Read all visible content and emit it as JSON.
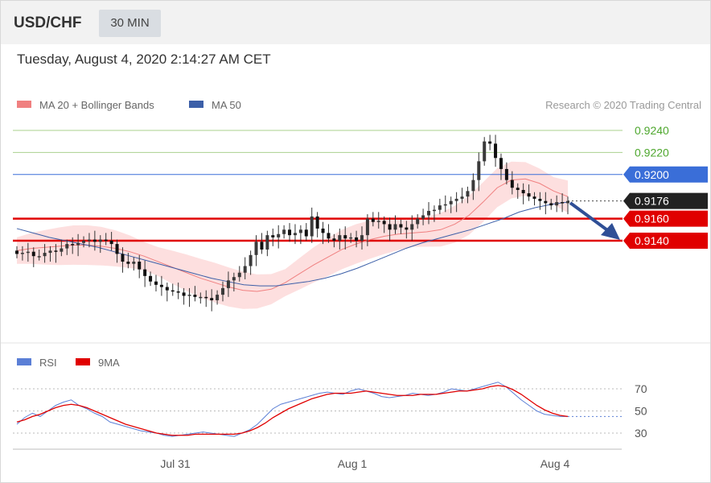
{
  "header": {
    "symbol": "USD/CHF",
    "timeframe": "30 MIN"
  },
  "datetime": "Tuesday, August 4, 2020 2:14:27 AM CET",
  "legend": {
    "ma20": "MA 20 + Bollinger Bands",
    "ma50": "MA 50",
    "credit": "Research © 2020 Trading Central",
    "rsi": "RSI",
    "rsi_ma": "9MA"
  },
  "colors": {
    "ma20": "#f08080",
    "ma50": "#3c5fa8",
    "band_fill": "#fddcdc",
    "candle": "#333333",
    "green_line": "#a9d18e",
    "green_text": "#4ea72e",
    "blue_level": "#3a6ed8",
    "red_level": "#e00000",
    "current": "#222222",
    "arrow": "#2f4f96",
    "rsi": "#5b7fd6",
    "rsi_ma": "#e00000"
  },
  "chart_data": [
    {
      "type": "candlestick",
      "title": "USD/CHF 30 MIN",
      "x_axis": [
        "Jul 31",
        "Aug 1",
        "Aug 4"
      ],
      "ylim": [
        0.9085,
        0.9245
      ],
      "levels": [
        {
          "value": 0.924,
          "label": "0.9240",
          "kind": "resistance-minor"
        },
        {
          "value": 0.922,
          "label": "0.9220",
          "kind": "resistance-minor"
        },
        {
          "value": 0.92,
          "label": "0.9200",
          "kind": "resistance"
        },
        {
          "value": 0.9176,
          "label": "0.9176",
          "kind": "current"
        },
        {
          "value": 0.916,
          "label": "0.9160",
          "kind": "support"
        },
        {
          "value": 0.914,
          "label": "0.9140",
          "kind": "support"
        }
      ],
      "closes": [
        0.9128,
        0.9129,
        0.913,
        0.9126,
        0.9126,
        0.9129,
        0.9131,
        0.913,
        0.9133,
        0.9137,
        0.9136,
        0.9138,
        0.914,
        0.9141,
        0.9139,
        0.9141,
        0.914,
        0.9137,
        0.9128,
        0.9121,
        0.9119,
        0.9121,
        0.9114,
        0.9108,
        0.9103,
        0.91,
        0.9098,
        0.9095,
        0.9094,
        0.9093,
        0.909,
        0.9091,
        0.9089,
        0.9089,
        0.9088,
        0.9086,
        0.9091,
        0.9097,
        0.9104,
        0.9107,
        0.9111,
        0.9117,
        0.9127,
        0.9139,
        0.9132,
        0.9145,
        0.9143,
        0.9146,
        0.915,
        0.9145,
        0.9147,
        0.915,
        0.9144,
        0.9162,
        0.9151,
        0.9147,
        0.9142,
        0.914,
        0.9145,
        0.9142,
        0.9143,
        0.914,
        0.9145,
        0.916,
        0.9157,
        0.9158,
        0.9155,
        0.915,
        0.9155,
        0.9152,
        0.915,
        0.9155,
        0.916,
        0.9163,
        0.9167,
        0.9168,
        0.9172,
        0.9173,
        0.9176,
        0.9178,
        0.918,
        0.9185,
        0.9195,
        0.9212,
        0.923,
        0.9228,
        0.9215,
        0.9205,
        0.9195,
        0.9188,
        0.9186,
        0.9183,
        0.918,
        0.9178,
        0.9176,
        0.9174,
        0.9172,
        0.9175,
        0.9174,
        0.9176
      ],
      "ma20": [
        0.9131,
        0.9133,
        0.9134,
        0.9135,
        0.9136,
        0.9136,
        0.9135,
        0.9133,
        0.913,
        0.9126,
        0.9121,
        0.9116,
        0.9111,
        0.9106,
        0.9102,
        0.9098,
        0.9095,
        0.9094,
        0.9096,
        0.9102,
        0.911,
        0.9118,
        0.9125,
        0.9132,
        0.9137,
        0.9141,
        0.9144,
        0.9146,
        0.9147,
        0.9148,
        0.915,
        0.9155,
        0.9163,
        0.9175,
        0.9188,
        0.9195,
        0.9196,
        0.9192,
        0.9185,
        0.918
      ],
      "ma50": [
        0.9151,
        0.9147,
        0.9143,
        0.914,
        0.9137,
        0.9134,
        0.913,
        0.9126,
        0.9122,
        0.9118,
        0.9114,
        0.911,
        0.9106,
        0.9103,
        0.91,
        0.9099,
        0.9099,
        0.9101,
        0.9103,
        0.9106,
        0.911,
        0.9115,
        0.9121,
        0.9127,
        0.9133,
        0.9138,
        0.9142,
        0.9146,
        0.915,
        0.9155,
        0.916,
        0.9166,
        0.917,
        0.9173,
        0.9175
      ]
    },
    {
      "type": "line",
      "title": "RSI",
      "yticks": [
        30,
        50,
        70
      ],
      "series": [
        {
          "name": "RSI",
          "values": [
            38,
            44,
            48,
            45,
            50,
            55,
            58,
            60,
            55,
            52,
            48,
            45,
            40,
            38,
            36,
            34,
            32,
            31,
            30,
            28,
            27,
            28,
            29,
            30,
            31,
            30,
            29,
            28,
            27,
            30,
            33,
            38,
            45,
            52,
            56,
            58,
            60,
            62,
            64,
            66,
            67,
            66,
            65,
            68,
            70,
            68,
            66,
            63,
            62,
            63,
            64,
            66,
            65,
            64,
            65,
            67,
            70,
            69,
            68,
            70,
            72,
            74,
            76,
            72,
            66,
            60,
            55,
            50,
            47,
            46,
            45,
            45
          ]
        },
        {
          "name": "9MA",
          "values": [
            40,
            42,
            45,
            47,
            50,
            53,
            55,
            56,
            55,
            53,
            50,
            47,
            44,
            41,
            38,
            36,
            34,
            32,
            30,
            29,
            28,
            28,
            28,
            29,
            29,
            29,
            29,
            29,
            29,
            30,
            32,
            35,
            39,
            44,
            48,
            52,
            55,
            58,
            61,
            63,
            65,
            66,
            66,
            66,
            67,
            68,
            67,
            66,
            65,
            64,
            64,
            64,
            65,
            65,
            65,
            66,
            67,
            68,
            68,
            69,
            70,
            72,
            73,
            72,
            69,
            65,
            60,
            55,
            51,
            48,
            46,
            45
          ]
        }
      ]
    }
  ]
}
